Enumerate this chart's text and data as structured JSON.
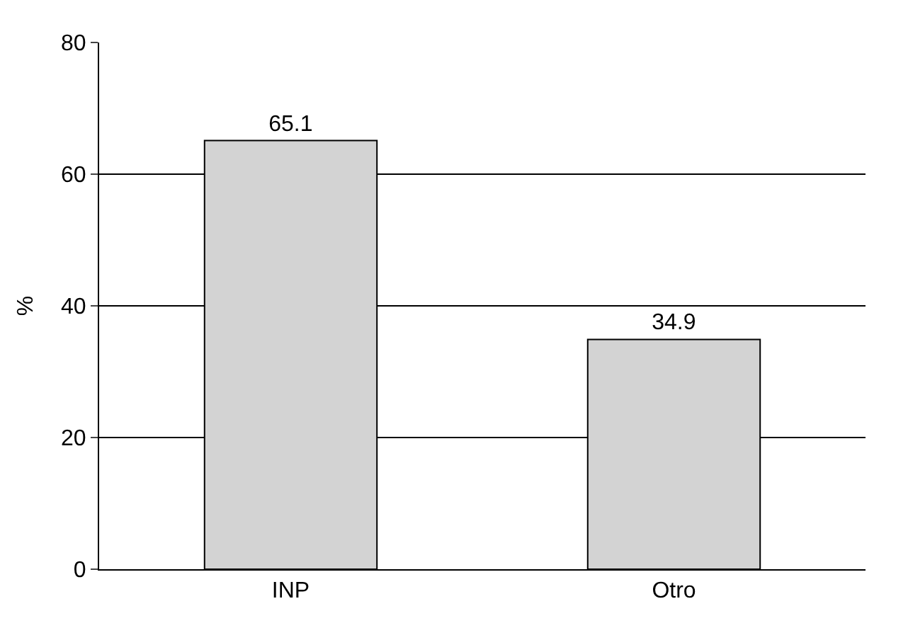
{
  "chart_data": {
    "type": "bar",
    "ylabel": "%",
    "categories": [
      "INP",
      "Otro"
    ],
    "values": [
      65.1,
      34.9
    ],
    "color": "#d3d3d3",
    "ylim": [
      0,
      80
    ],
    "yticks": [
      0,
      20,
      40,
      60,
      80
    ],
    "grid": "y",
    "data_labels": true,
    "legend": false
  }
}
